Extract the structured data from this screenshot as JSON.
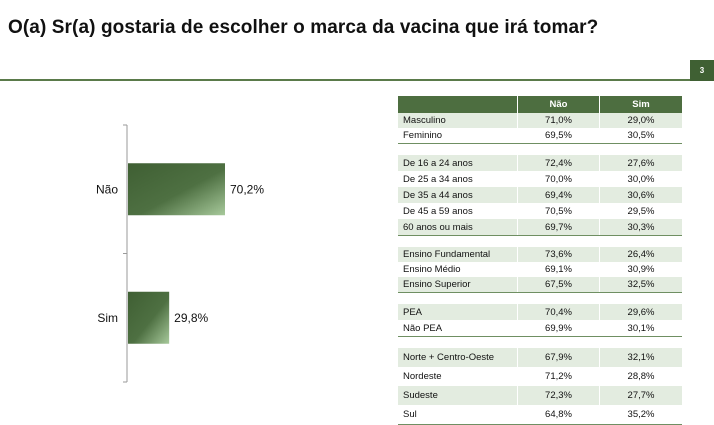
{
  "title": "O(a) Sr(a) gostaria de escolher o marca da vacina que irá tomar?",
  "page_number": "3",
  "colors": {
    "accent": "#4d6e40",
    "bar_dark": "#3f5f33",
    "bar_light": "#9fc293",
    "row_shade": "#e3ece0"
  },
  "chart_data": {
    "type": "bar",
    "orientation": "horizontal",
    "categories": [
      "Não",
      "Sim"
    ],
    "values": [
      70.2,
      29.8
    ],
    "value_labels": [
      "70,2%",
      "29,8%"
    ],
    "xlim": [
      0,
      100
    ],
    "title": "",
    "xlabel": "",
    "ylabel": ""
  },
  "table": {
    "headers": [
      "",
      "Não",
      "Sim"
    ],
    "groups": [
      [
        [
          "Masculino",
          "71,0%",
          "29,0%"
        ],
        [
          "Feminino",
          "69,5%",
          "30,5%"
        ]
      ],
      [
        [
          "De 16 a 24 anos",
          "72,4%",
          "27,6%"
        ],
        [
          "De 25 a 34 anos",
          "70,0%",
          "30,0%"
        ],
        [
          "De 35 a 44 anos",
          "69,4%",
          "30,6%"
        ],
        [
          "De 45 a 59 anos",
          "70,5%",
          "29,5%"
        ],
        [
          "60 anos ou mais",
          "69,7%",
          "30,3%"
        ]
      ],
      [
        [
          "Ensino Fundamental",
          "73,6%",
          "26,4%"
        ],
        [
          "Ensino Médio",
          "69,1%",
          "30,9%"
        ],
        [
          "Ensino Superior",
          "67,5%",
          "32,5%"
        ]
      ],
      [
        [
          "PEA",
          "70,4%",
          "29,6%"
        ],
        [
          "Não PEA",
          "69,9%",
          "30,1%"
        ]
      ],
      [
        [
          "Norte + Centro-Oeste",
          "67,9%",
          "32,1%"
        ],
        [
          "Nordeste",
          "71,2%",
          "28,8%"
        ],
        [
          "Sudeste",
          "72,3%",
          "27,7%"
        ],
        [
          "Sul",
          "64,8%",
          "35,2%"
        ]
      ]
    ]
  }
}
